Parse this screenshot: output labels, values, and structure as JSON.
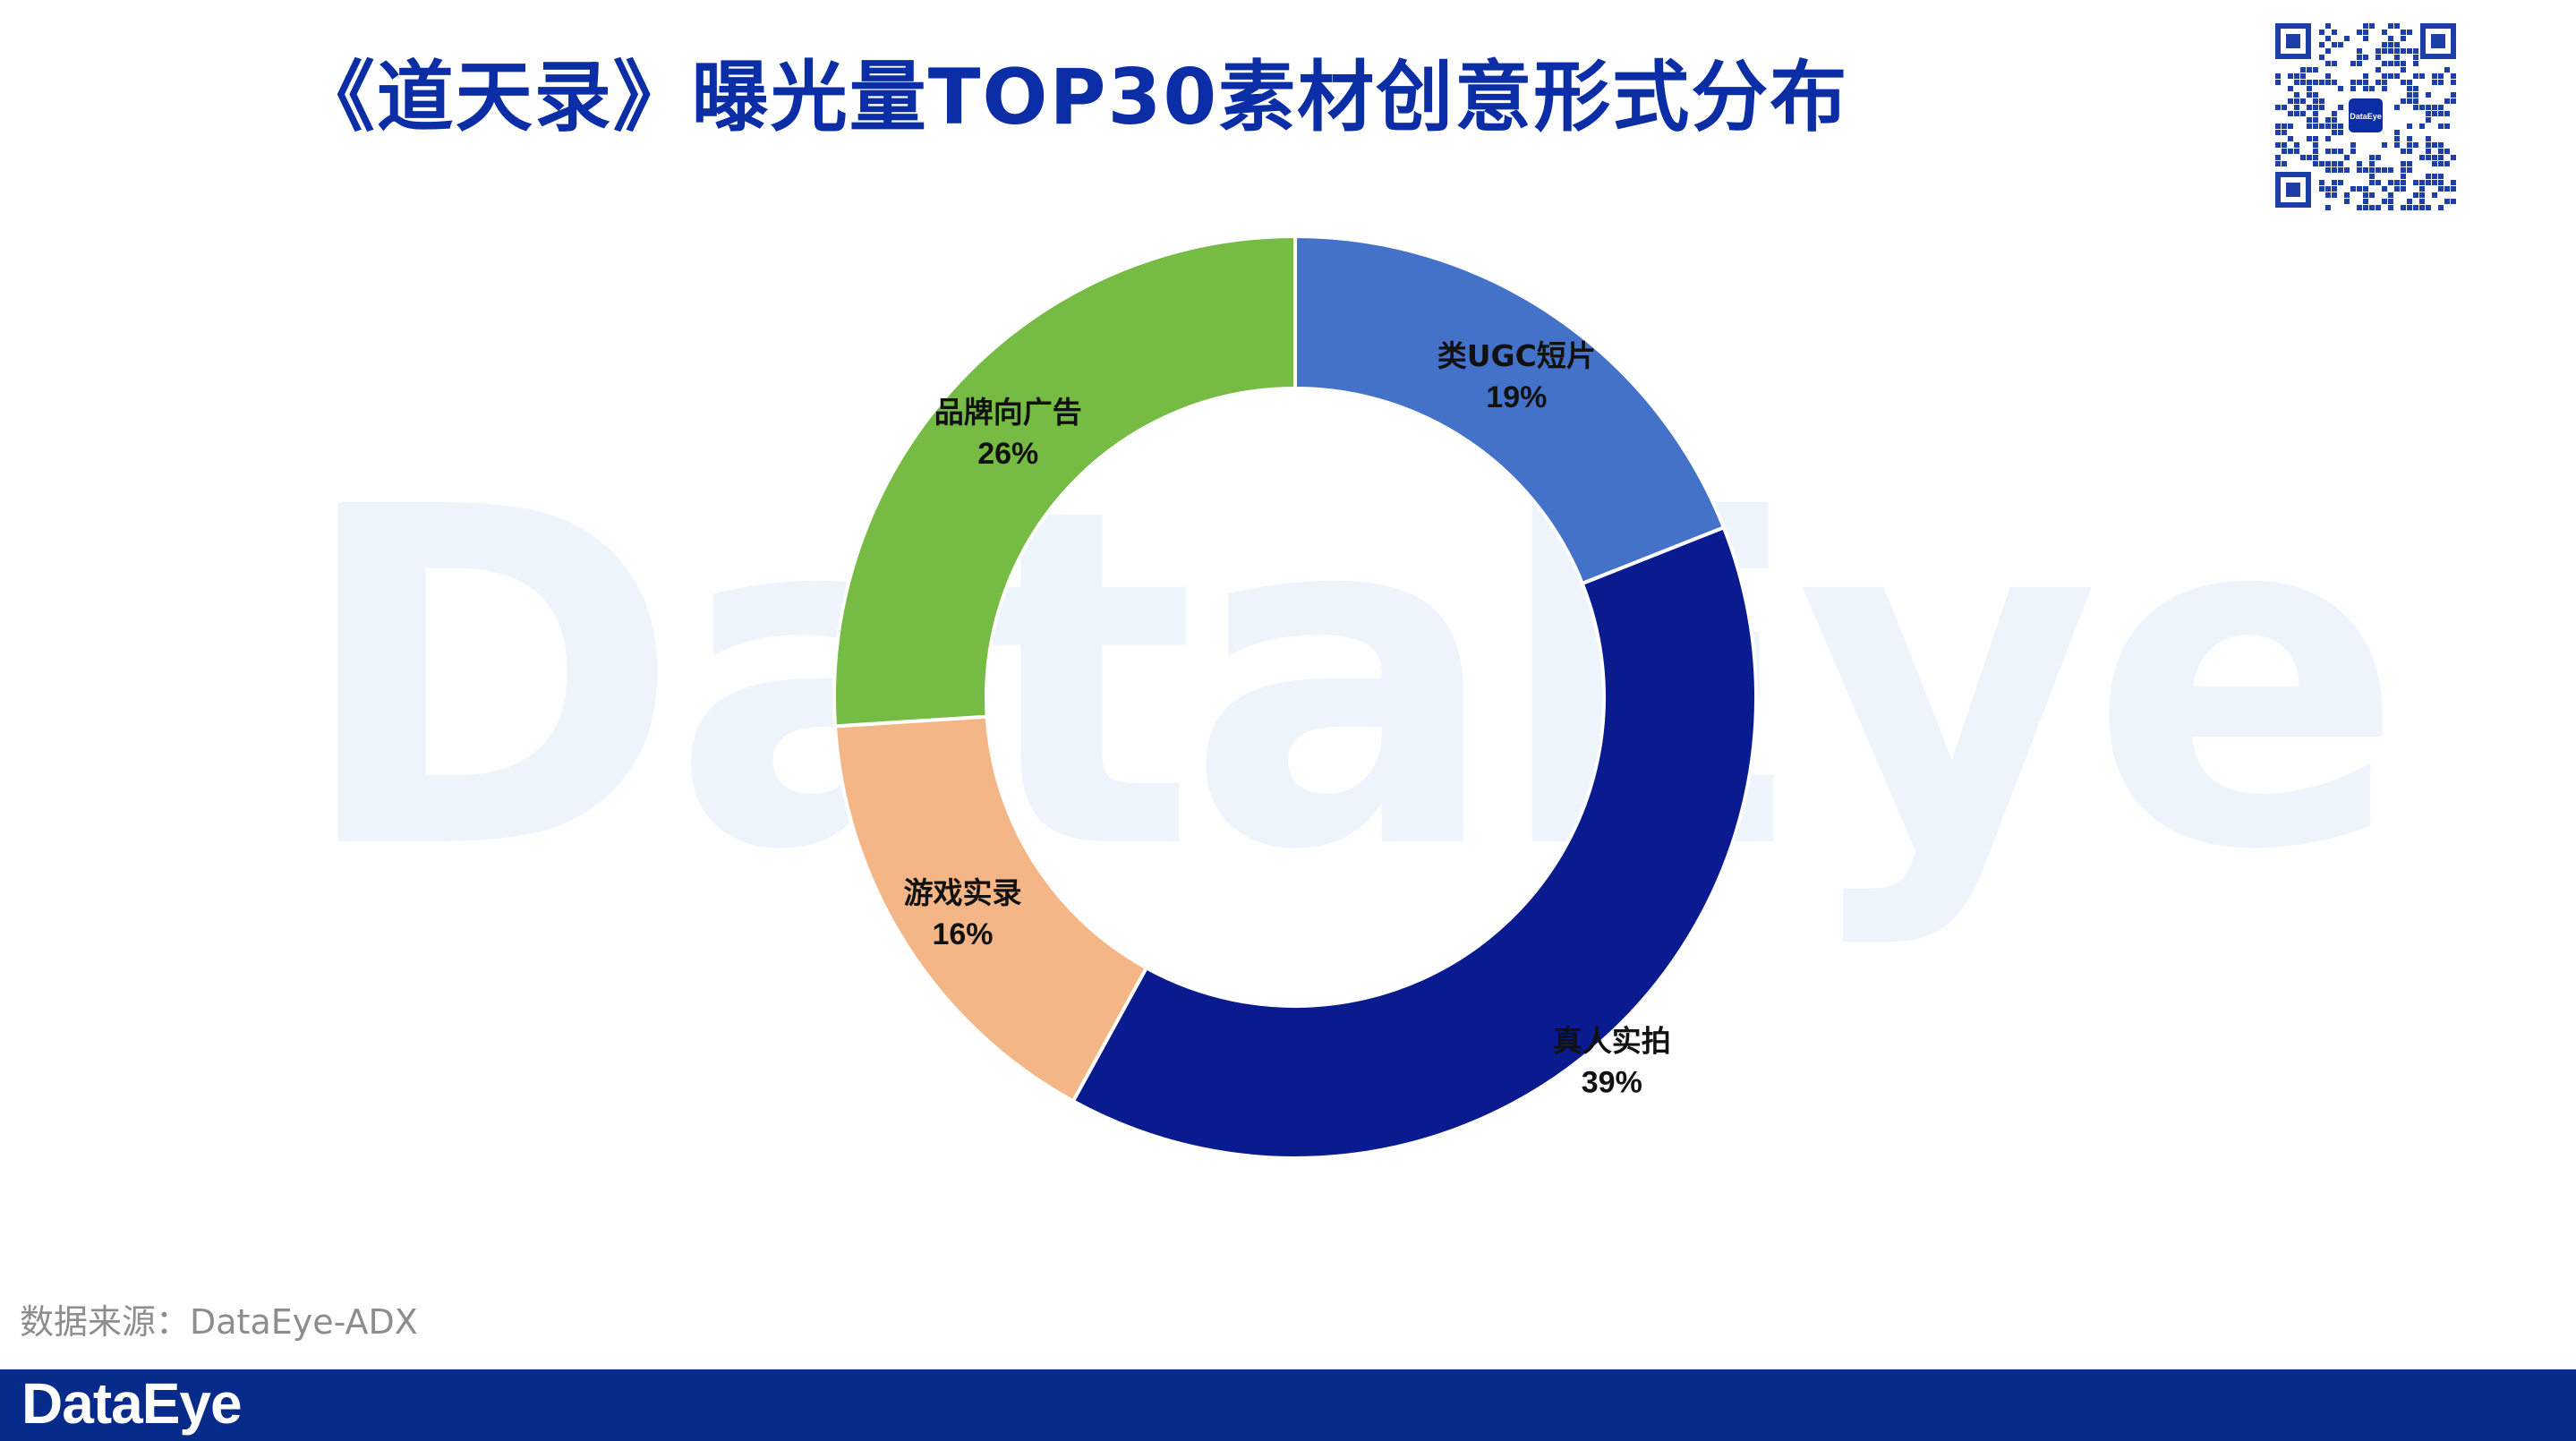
{
  "title": "《道天录》曝光量TOP30素材创意形式分布",
  "watermark_text": "DataEye",
  "qr_badge_text": "DataEye",
  "source_text": "数据来源：DataEye-ADX",
  "footer_logo": "DataEye",
  "chart_data": {
    "type": "pie",
    "donut": true,
    "title": "《道天录》曝光量TOP30素材创意形式分布",
    "start_angle_deg": 0,
    "direction": "clockwise",
    "slices": [
      {
        "label": "类UGC短片",
        "value": 19,
        "display": "19%",
        "color": "#4472c9",
        "label_position": "inside",
        "label_color": "#111111"
      },
      {
        "label": "真人实拍",
        "value": 39,
        "display": "39%",
        "color": "#0a1a8f",
        "label_position": "outside",
        "label_color": "#111111"
      },
      {
        "label": "游戏实录",
        "value": 16,
        "display": "16%",
        "color": "#f4b686",
        "label_position": "inside",
        "label_color": "#111111"
      },
      {
        "label": "品牌向广告",
        "value": 26,
        "display": "26%",
        "color": "#76bc44",
        "label_position": "inside",
        "label_color": "#111111"
      }
    ]
  }
}
